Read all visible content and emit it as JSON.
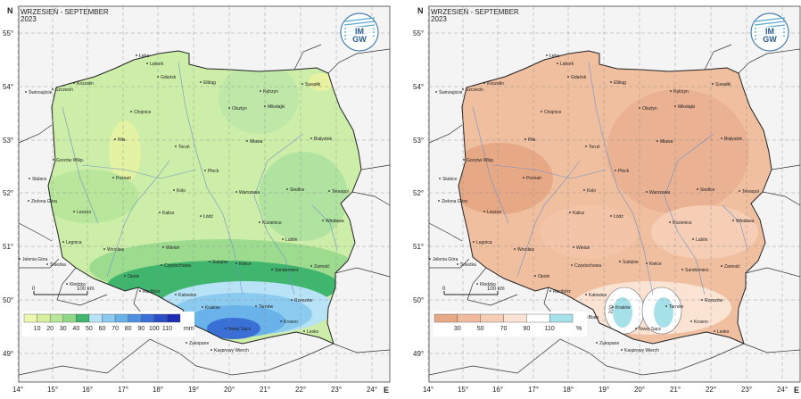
{
  "maps": [
    {
      "title": "WRZESIEŃ - SEPTEMBER",
      "year": "2023",
      "logo": "IMGW",
      "north_label": "N",
      "east_label": "E",
      "lat_labels": [
        "55°",
        "54°",
        "53°",
        "52°",
        "51°",
        "50°",
        "49°"
      ],
      "lon_labels": [
        "14°",
        "15°",
        "16°",
        "17°",
        "18°",
        "19°",
        "20°",
        "21°",
        "22°",
        "23°",
        "24°"
      ],
      "scale": {
        "zero": "0",
        "dist": "100 km"
      },
      "legend": {
        "values": [
          "10",
          "20",
          "30",
          "40",
          "50",
          "60",
          "70",
          "80",
          "90",
          "100",
          "110"
        ],
        "unit": "mm"
      },
      "legend_colors": [
        "#eef7b0",
        "#d6f0a0",
        "#b8e69a",
        "#8fd88a",
        "#3fb56d",
        "#b8e2f6",
        "#8ccbf0",
        "#69b3ea",
        "#4d91df",
        "#3a6fd6",
        "#2b4fc6",
        "#1e2db3"
      ],
      "fill": "#cdeea8",
      "cities": [
        "Łeba",
        "Lębork",
        "Koszalin",
        "Gdańsk",
        "Elbląg",
        "Kętrzyn",
        "Suwałki",
        "Świnoujście",
        "Szczecin",
        "Chojnice",
        "Olsztyn",
        "Mikołajki",
        "Piła",
        "Toruń",
        "Mława",
        "Białystok",
        "Gorzów Wlkp.",
        "Słubice",
        "Poznań",
        "Płock",
        "Kolo",
        "Warszawa",
        "Siedlce",
        "Terespol",
        "Zielona Góra",
        "Leszno",
        "Kalisz",
        "Łódź",
        "Kozienice",
        "Włodawa",
        "Legnica",
        "Wrocław",
        "Wieluń",
        "Sulejów",
        "Lublin",
        "Jelenia Góra",
        "Śnieżka",
        "Kłodzko",
        "Opole",
        "Częstochowa",
        "Kielce",
        "Sandomierz",
        "Zamość",
        "Racibórz",
        "Katowice",
        "Kraków",
        "Tarnów",
        "Rzeszów",
        "Bielsko-Biała",
        "Krosno",
        "Nowy Sącz",
        "Lesko",
        "Zakopane",
        "Kasprowy Wierch"
      ]
    },
    {
      "title": "WRZESIEŃ - SEPTEMBER",
      "year": "2023",
      "logo": "IMGW",
      "north_label": "N",
      "east_label": "E",
      "lat_labels": [
        "55°",
        "54°",
        "53°",
        "52°",
        "51°",
        "50°",
        "49°"
      ],
      "lon_labels": [
        "14°",
        "15°",
        "16°",
        "17°",
        "18°",
        "19°",
        "20°",
        "21°",
        "22°",
        "23°",
        "24°"
      ],
      "scale": {
        "zero": "0",
        "dist": "100 km"
      },
      "legend": {
        "values": [
          "30",
          "50",
          "70",
          "90",
          "110"
        ],
        "unit": "%"
      },
      "legend_colors": [
        "#e7a886",
        "#f0bb9c",
        "#f6ceb6",
        "#fbe3d4",
        "#ffffff",
        "#a6e1ea"
      ],
      "fill": "#f0bf9f",
      "contour_label": "100",
      "cities": [
        "Łeba",
        "Lębork",
        "Koszalin",
        "Gdańsk",
        "Elbląg",
        "Kętrzyn",
        "Suwałki",
        "Świnoujście",
        "Szczecin",
        "Chojnice",
        "Olsztyn",
        "Mikołajki",
        "Piła",
        "Toruń",
        "Mława",
        "Białystok",
        "Gorzów Wlkp.",
        "Słubice",
        "Poznań",
        "Płock",
        "Kolo",
        "Warszawa",
        "Siedlce",
        "Terespol",
        "Zielona Góra",
        "Leszno",
        "Kalisz",
        "Łódź",
        "Kozienice",
        "Włodawa",
        "Legnica",
        "Wrocław",
        "Wieluń",
        "Sulejów",
        "Lublin",
        "Jelenia Góra",
        "Śnieżka",
        "Kłodzko",
        "Opole",
        "Częstochowa",
        "Kielce",
        "Sandomierz",
        "Zamość",
        "Racibórz",
        "Katowice",
        "Kraków",
        "Tarnów",
        "Rzeszów",
        "Bielsko-Biała",
        "Krosno",
        "Nowy Sącz",
        "Lesko",
        "Zakopane",
        "Kasprowy Wierch"
      ]
    }
  ]
}
